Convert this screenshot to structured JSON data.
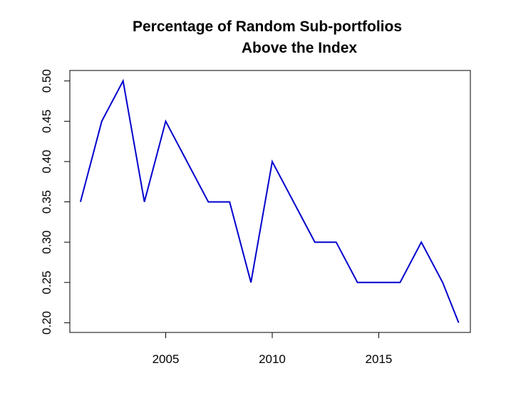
{
  "chart_data": {
    "type": "line",
    "title_line1": "Percentage of Random Sub-portfolios",
    "title_line2": "Above the Index",
    "xlabel": "",
    "ylabel": "",
    "xlim": [
      2000.5,
      2019.3
    ],
    "ylim": [
      0.188,
      0.513
    ],
    "x_ticks": [
      2005,
      2010,
      2015
    ],
    "x_tick_labels": [
      "2005",
      "2010",
      "2015"
    ],
    "y_ticks": [
      0.2,
      0.25,
      0.3,
      0.35,
      0.4,
      0.45,
      0.5
    ],
    "y_tick_labels": [
      "0.20",
      "0.25",
      "0.30",
      "0.35",
      "0.40",
      "0.45",
      "0.50"
    ],
    "grid": false,
    "line_color": "#0000cd",
    "series": [
      {
        "x": [
          2001,
          2002,
          2003,
          2004,
          2005,
          2006,
          2007,
          2008,
          2009,
          2010,
          2011,
          2012,
          2013,
          2014,
          2015,
          2016,
          2017,
          2018,
          2018.75
        ],
        "values": [
          0.35,
          0.45,
          0.5,
          0.35,
          0.45,
          0.4,
          0.35,
          0.35,
          0.25,
          0.4,
          0.35,
          0.3,
          0.3,
          0.25,
          0.25,
          0.25,
          0.3,
          0.25,
          0.2
        ]
      }
    ]
  }
}
